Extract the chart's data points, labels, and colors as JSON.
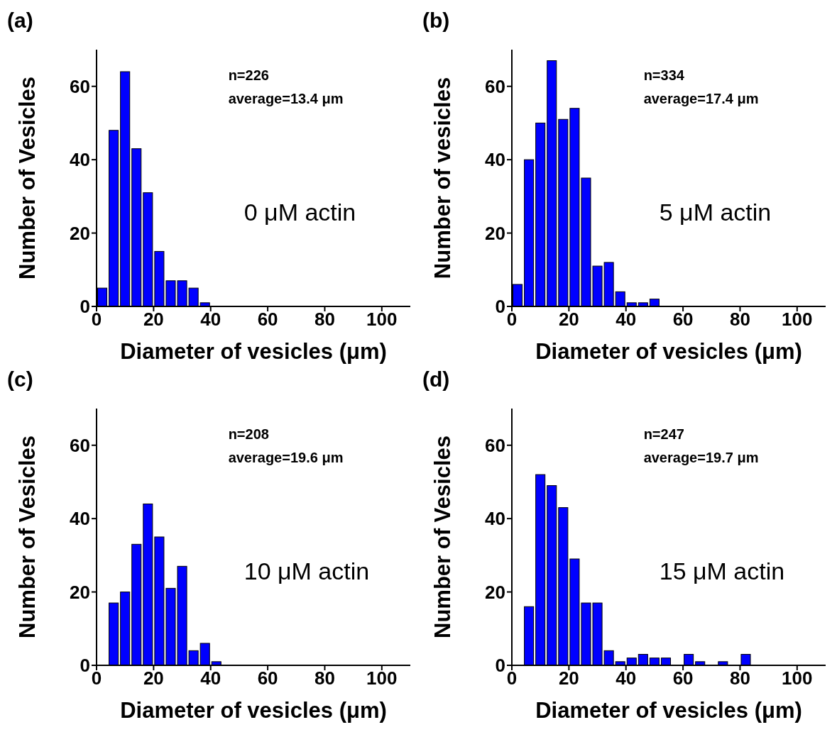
{
  "chart_data": [
    {
      "type": "histogram",
      "title": "(a)",
      "xlabel": "Diameter of vesicles (μm)",
      "ylabel": "Number of Vesicles",
      "bins": [
        0,
        4,
        8,
        12,
        16,
        20,
        24,
        28,
        32,
        36,
        40
      ],
      "values": [
        5,
        48,
        64,
        43,
        31,
        15,
        7,
        7,
        5,
        1
      ],
      "color": "#0000ff",
      "xlim": [
        0,
        110
      ],
      "xticks": [
        0,
        20,
        40,
        60,
        80,
        100
      ],
      "ylim": [
        0,
        70
      ],
      "yticks": [
        0,
        20,
        40,
        60
      ],
      "annotations": [
        "n=226",
        "average=13.4 μm",
        "0 μM actin"
      ]
    },
    {
      "type": "histogram",
      "title": "(b)",
      "xlabel": "Diameter of vesicles (μm)",
      "ylabel": "Number of vesicles",
      "bins": [
        0,
        4,
        8,
        12,
        16,
        20,
        24,
        28,
        32,
        36,
        40,
        44,
        48,
        52
      ],
      "values": [
        6,
        40,
        50,
        67,
        51,
        54,
        35,
        11,
        12,
        4,
        1,
        1,
        2
      ],
      "color": "#0000ff",
      "xlim": [
        0,
        110
      ],
      "xticks": [
        0,
        20,
        40,
        60,
        80,
        100
      ],
      "ylim": [
        0,
        70
      ],
      "yticks": [
        0,
        20,
        40,
        60
      ],
      "annotations": [
        "n=334",
        "average=17.4 μm",
        "5 μM actin"
      ]
    },
    {
      "type": "histogram",
      "title": "(c)",
      "xlabel": "Diameter of vesicles (μm)",
      "ylabel": "Number of Vesicles",
      "bins": [
        0,
        4,
        8,
        12,
        16,
        20,
        24,
        28,
        32,
        36,
        40,
        44
      ],
      "values": [
        0,
        17,
        20,
        33,
        44,
        35,
        21,
        27,
        4,
        6,
        1
      ],
      "color": "#0000ff",
      "xlim": [
        0,
        110
      ],
      "xticks": [
        0,
        20,
        40,
        60,
        80,
        100
      ],
      "ylim": [
        0,
        70
      ],
      "yticks": [
        0,
        20,
        40,
        60
      ],
      "annotations": [
        "n=208",
        "average=19.6 μm",
        "10 μM actin"
      ]
    },
    {
      "type": "histogram",
      "title": "(d)",
      "xlabel": "Diameter of vesicles (μm)",
      "ylabel": "Number of Vesicles",
      "bins": [
        0,
        4,
        8,
        12,
        16,
        20,
        24,
        28,
        32,
        36,
        40,
        44,
        48,
        52,
        56,
        60,
        64,
        68,
        72,
        76,
        80,
        84
      ],
      "values": [
        0,
        16,
        52,
        49,
        43,
        29,
        17,
        17,
        4,
        1,
        2,
        3,
        2,
        2,
        0,
        3,
        1,
        0,
        1,
        0,
        3
      ],
      "color": "#0000ff",
      "xlim": [
        0,
        110
      ],
      "xticks": [
        0,
        20,
        40,
        60,
        80,
        100
      ],
      "ylim": [
        0,
        70
      ],
      "yticks": [
        0,
        20,
        40,
        60
      ],
      "annotations": [
        "n=247",
        "average=19.7 μm",
        "15 μM actin"
      ]
    }
  ]
}
